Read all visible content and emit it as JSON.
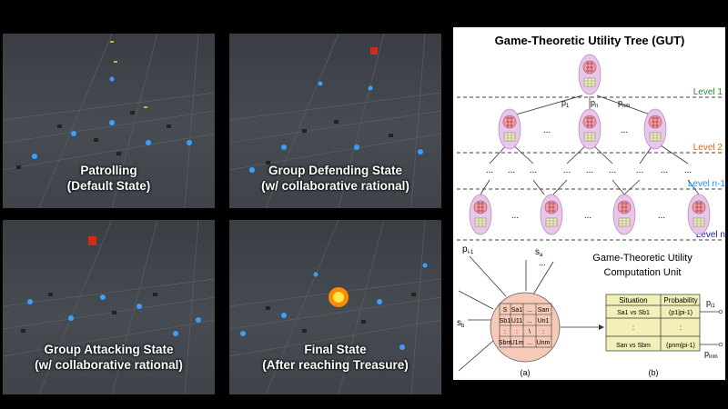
{
  "panels": [
    {
      "line1": "Patrolling",
      "line2": "(Default State)"
    },
    {
      "line1": "Group Defending State",
      "line2": "(w/ collaborative rational)"
    },
    {
      "line1": "Group Attacking State",
      "line2": "(w/ collaborative rational)"
    },
    {
      "line1": "Final State",
      "line2": "(After reaching Treasure)"
    }
  ],
  "diagram": {
    "title": "Game-Theoretic Utility Tree (GUT)",
    "levels": [
      "Level 1",
      "Level 2",
      "Level n-1",
      "Level n"
    ],
    "level_colors": [
      "#2e8b2e",
      "#d2691e",
      "#1e90ff",
      "#1a1aa0"
    ],
    "edge_labels": [
      "p",
      "1",
      "p",
      "n",
      "p",
      "nm"
    ],
    "dots": "...",
    "unit_title_1": "Game-Theoretic Utility",
    "unit_title_2": "Computation Unit",
    "p_i1": "p",
    "p_i1_sub": "i-1",
    "s_a": "s",
    "s_a_sub": "a",
    "s_b": "s",
    "s_b_sub": "b",
    "matrix": {
      "corner": "S",
      "header": [
        "Sa1",
        "...",
        "San"
      ],
      "rows": [
        [
          "Sb1",
          "U11",
          "...",
          "Un1"
        ],
        [
          ":",
          ":",
          "\\",
          ":"
        ],
        [
          "Sbm",
          "U1m",
          "...",
          "Unm"
        ]
      ]
    },
    "table": {
      "headers": [
        "Situation",
        "Probability"
      ],
      "rows": [
        [
          "Sa1  vs  Sb1",
          "(p1|pi-1)"
        ],
        [
          ":",
          ":"
        ],
        [
          "San  vs  Sbm",
          "(pnm|pi-1)"
        ]
      ]
    },
    "out_top": "p",
    "out_top_sub": "i1",
    "out_bottom": "p",
    "out_bottom_sub": "inm",
    "label_a": "(a)",
    "label_b": "(b)"
  }
}
